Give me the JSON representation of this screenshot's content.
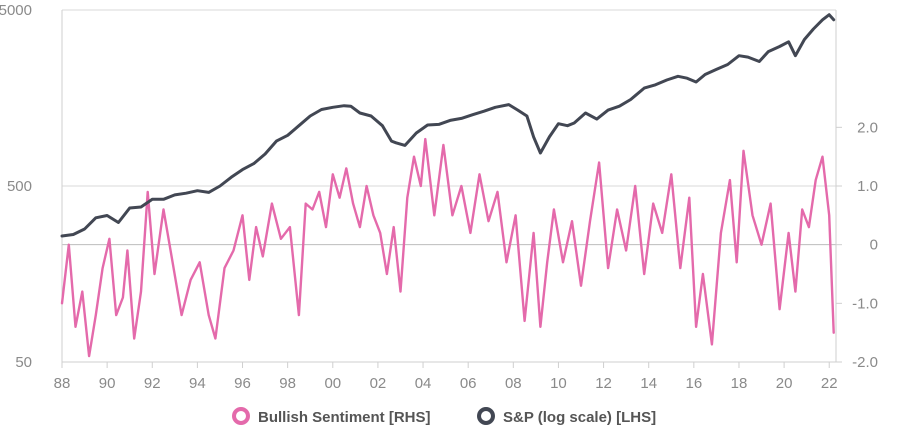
{
  "chart_data": {
    "type": "line",
    "x_axis": {
      "range": [
        1988,
        2022.3
      ],
      "tick_values": [
        1988,
        1990,
        1992,
        1994,
        1996,
        1998,
        2000,
        2002,
        2004,
        2006,
        2008,
        2010,
        2012,
        2014,
        2016,
        2018,
        2020,
        2022
      ],
      "tick_labels": [
        "88",
        "90",
        "92",
        "94",
        "96",
        "98",
        "00",
        "02",
        "04",
        "06",
        "08",
        "10",
        "12",
        "14",
        "16",
        "18",
        "20",
        "22"
      ]
    },
    "y_left": {
      "scale": "log",
      "range": [
        50,
        5000
      ],
      "ticks": [
        50,
        500,
        5000
      ],
      "tick_labels": [
        "50",
        "500",
        "5000"
      ]
    },
    "y_right": {
      "scale": "linear",
      "range": [
        -2.0,
        4.0
      ],
      "ticks": [
        -2.0,
        -1.0,
        0,
        1.0,
        2.0
      ],
      "tick_labels": [
        "-2.0",
        "-1.0",
        "0",
        "1.0",
        "2.0"
      ]
    },
    "zero_line": true,
    "legend_position": "bottom",
    "series": [
      {
        "name": "Bullish Sentiment [RHS]",
        "axis": "right",
        "color": "#e46aab",
        "x": [
          1988.0,
          1988.3,
          1988.6,
          1988.9,
          1989.2,
          1989.5,
          1989.8,
          1990.1,
          1990.4,
          1990.7,
          1990.9,
          1991.2,
          1991.5,
          1991.8,
          1992.1,
          1992.5,
          1992.9,
          1993.3,
          1993.7,
          1994.1,
          1994.5,
          1994.8,
          1995.2,
          1995.6,
          1996.0,
          1996.3,
          1996.6,
          1996.9,
          1997.3,
          1997.7,
          1998.1,
          1998.5,
          1998.8,
          1999.1,
          1999.4,
          1999.7,
          2000.0,
          2000.3,
          2000.6,
          2000.9,
          2001.2,
          2001.5,
          2001.8,
          2002.1,
          2002.4,
          2002.7,
          2003.0,
          2003.3,
          2003.6,
          2003.9,
          2004.1,
          2004.5,
          2004.9,
          2005.3,
          2005.7,
          2006.1,
          2006.5,
          2006.9,
          2007.3,
          2007.7,
          2008.1,
          2008.5,
          2008.9,
          2009.2,
          2009.5,
          2009.8,
          2010.2,
          2010.6,
          2011.0,
          2011.4,
          2011.8,
          2012.2,
          2012.6,
          2013.0,
          2013.4,
          2013.8,
          2014.2,
          2014.6,
          2015.0,
          2015.4,
          2015.8,
          2016.1,
          2016.4,
          2016.8,
          2017.2,
          2017.6,
          2017.9,
          2018.2,
          2018.6,
          2019.0,
          2019.4,
          2019.8,
          2020.2,
          2020.5,
          2020.8,
          2021.1,
          2021.4,
          2021.7,
          2022.0,
          2022.2
        ],
        "y": [
          -1.0,
          0.0,
          -1.4,
          -0.8,
          -1.9,
          -1.2,
          -0.4,
          0.1,
          -1.2,
          -0.9,
          -0.1,
          -1.6,
          -0.8,
          0.9,
          -0.5,
          0.6,
          -0.3,
          -1.2,
          -0.6,
          -0.3,
          -1.2,
          -1.6,
          -0.4,
          -0.1,
          0.5,
          -0.6,
          0.3,
          -0.2,
          0.7,
          0.1,
          0.3,
          -1.2,
          0.7,
          0.6,
          0.9,
          0.3,
          1.2,
          0.8,
          1.3,
          0.7,
          0.3,
          1.0,
          0.5,
          0.2,
          -0.5,
          0.3,
          -0.8,
          0.8,
          1.5,
          1.0,
          1.8,
          0.5,
          1.7,
          0.5,
          1.0,
          0.2,
          1.2,
          0.4,
          0.9,
          -0.3,
          0.5,
          -1.3,
          0.2,
          -1.4,
          -0.3,
          0.6,
          -0.3,
          0.4,
          -0.7,
          0.4,
          1.4,
          -0.4,
          0.6,
          -0.1,
          1.0,
          -0.5,
          0.7,
          0.2,
          1.2,
          -0.4,
          0.8,
          -1.4,
          -0.5,
          -1.7,
          0.2,
          1.1,
          -0.3,
          1.6,
          0.5,
          0.0,
          0.7,
          -1.1,
          0.2,
          -0.8,
          0.6,
          0.3,
          1.1,
          1.5,
          0.5,
          -1.5
        ]
      },
      {
        "name": "S&P (log scale) [LHS]",
        "axis": "left",
        "color": "#424753",
        "x": [
          1988.0,
          1988.5,
          1989.0,
          1989.5,
          1990.0,
          1990.5,
          1991.0,
          1991.5,
          1992.0,
          1992.5,
          1993.0,
          1993.5,
          1994.0,
          1994.5,
          1995.0,
          1995.5,
          1996.0,
          1996.5,
          1997.0,
          1997.5,
          1998.0,
          1998.5,
          1999.0,
          1999.5,
          2000.0,
          2000.5,
          2000.8,
          2001.2,
          2001.7,
          2002.2,
          2002.6,
          2002.8,
          2003.2,
          2003.7,
          2004.2,
          2004.7,
          2005.2,
          2005.7,
          2006.2,
          2006.7,
          2007.2,
          2007.8,
          2008.2,
          2008.6,
          2008.9,
          2009.2,
          2009.6,
          2010.0,
          2010.4,
          2010.7,
          2011.2,
          2011.7,
          2012.2,
          2012.7,
          2013.2,
          2013.8,
          2014.3,
          2014.8,
          2015.3,
          2015.7,
          2016.1,
          2016.5,
          2017.0,
          2017.5,
          2018.0,
          2018.4,
          2018.9,
          2019.3,
          2019.8,
          2020.2,
          2020.5,
          2020.9,
          2021.3,
          2021.7,
          2022.0,
          2022.2
        ],
        "y": [
          260,
          265,
          285,
          330,
          340,
          310,
          375,
          380,
          420,
          420,
          445,
          455,
          470,
          460,
          500,
          560,
          620,
          670,
          760,
          900,
          970,
          1100,
          1250,
          1360,
          1400,
          1430,
          1420,
          1300,
          1250,
          1100,
          900,
          880,
          850,
          1000,
          1110,
          1120,
          1180,
          1210,
          1270,
          1330,
          1400,
          1450,
          1350,
          1250,
          950,
          770,
          950,
          1130,
          1100,
          1140,
          1300,
          1200,
          1350,
          1420,
          1550,
          1800,
          1880,
          2000,
          2100,
          2050,
          1950,
          2150,
          2300,
          2450,
          2750,
          2700,
          2550,
          2900,
          3100,
          3300,
          2750,
          3400,
          3900,
          4400,
          4700,
          4400
        ]
      }
    ]
  }
}
